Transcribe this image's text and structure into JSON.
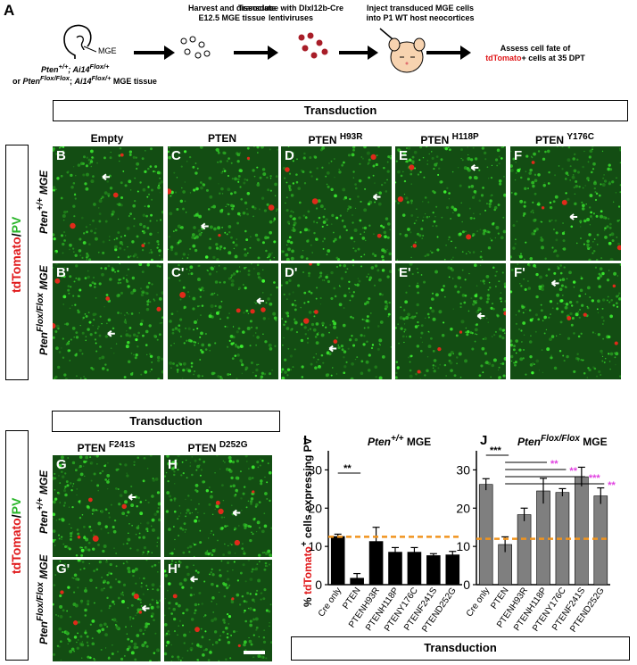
{
  "panel_letters": {
    "A": "A",
    "I": "I",
    "J": "J"
  },
  "schematic": {
    "mge_label": "MGE",
    "genotype_line1": "Pten+/+; Ai14Flox/+",
    "genotype_line2": "or PtenFlox/Flox; Ai14Flox/+ MGE tissue",
    "step1_line1": "Harvest and dissociate",
    "step1_line2": "E12.5 MGE tissue",
    "step2_line1": "Transduce with Dlxl12b-Cre",
    "step2_line2": "lentiviruses",
    "step3_line1": "Inject transduced MGE cells",
    "step3_line2": "into P1 WT host neocortices",
    "step4_line1": "Assess cell fate of",
    "step4_line2_red": "tdTomato",
    "step4_line2_rest": "+ cells at 35 DPT"
  },
  "transduction_label": "Transduction",
  "stain_label": {
    "red": "tdTomato",
    "slash": "/",
    "green": "PV"
  },
  "row_labels": {
    "wt": "Pten+/+ MGE",
    "flox": "PtenFlox/Flox MGE"
  },
  "top_columns": [
    {
      "title": "Empty",
      "top": "B",
      "bottom": "B'"
    },
    {
      "title": "PTEN",
      "top": "C",
      "bottom": "C'"
    },
    {
      "title": "PTEN H93R",
      "top": "D",
      "bottom": "D'"
    },
    {
      "title": "PTEN H118P",
      "top": "E",
      "bottom": "E'"
    },
    {
      "title": "PTEN Y176C",
      "top": "F",
      "bottom": "F'"
    }
  ],
  "bottom_columns": [
    {
      "title": "PTEN F241S",
      "top": "G",
      "bottom": "G'"
    },
    {
      "title": "PTEN D252G",
      "top": "H",
      "bottom": "H'"
    }
  ],
  "colors": {
    "black_bar": "#000000",
    "gray_bar": "#7f7f7f",
    "threshold": "#f0941e",
    "sig_black": "#000000",
    "sig_magenta": "#e040e0",
    "tdtomato": "#e0181a",
    "pv": "#2ab52a"
  },
  "chart_data": [
    {
      "type": "bar",
      "title": "Pten+/+ MGE",
      "ylabel": "% tdTomato+ cells expressing PV",
      "categories": [
        "Cre only",
        "PTEN",
        "PTENH93R",
        "PTENH118P",
        "PTENY176C",
        "PTENF241S",
        "PTEND252G"
      ],
      "values": [
        12.6,
        1.7,
        11.3,
        8.5,
        8.5,
        7.6,
        7.8
      ],
      "errors": [
        0.6,
        1.2,
        3.7,
        1.2,
        1.2,
        0.5,
        0.9
      ],
      "ylim": [
        0,
        35
      ],
      "yticks": [
        0,
        10,
        20,
        30
      ],
      "threshold": 12.5,
      "significance": [
        {
          "from": 0,
          "to": 1,
          "label": "**"
        }
      ]
    },
    {
      "type": "bar",
      "title": "PtenFlox/Flox MGE",
      "categories": [
        "Cre only",
        "PTEN",
        "PTENH93R",
        "PTENH118P",
        "PTENY176C",
        "PTENF241S",
        "PTEND252G"
      ],
      "values": [
        26.2,
        10.5,
        18.3,
        24.5,
        24.1,
        28.2,
        23.2
      ],
      "errors": [
        1.5,
        2.0,
        1.7,
        3.3,
        1.0,
        2.5,
        2.1
      ],
      "ylim": [
        0,
        35
      ],
      "yticks": [
        0,
        10,
        20,
        30
      ],
      "threshold": 12.0,
      "significance": [
        {
          "from": 0,
          "to": 1,
          "label": "***"
        },
        {
          "from": 1,
          "to": 3,
          "label": "**"
        },
        {
          "from": 1,
          "to": 4,
          "label": "**"
        },
        {
          "from": 1,
          "to": 5,
          "label": "***"
        },
        {
          "from": 1,
          "to": 6,
          "label": "**"
        }
      ]
    }
  ],
  "bottom_box_label": "Transduction"
}
